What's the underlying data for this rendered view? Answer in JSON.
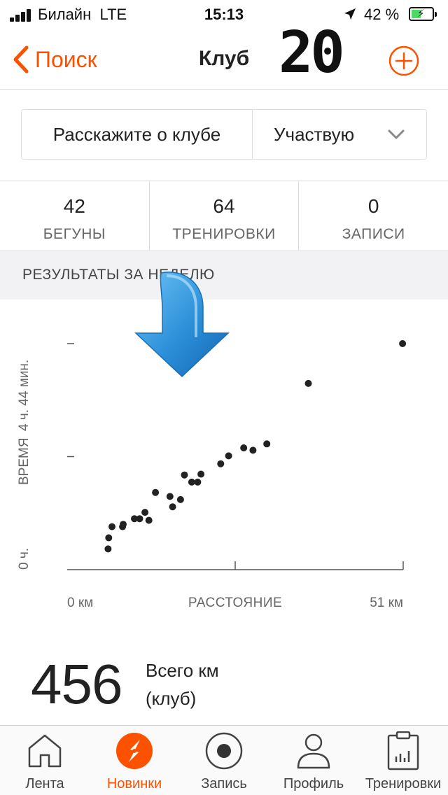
{
  "status_bar": {
    "carrier": "Билайн",
    "network": "LTE",
    "time": "15:13",
    "battery": "42 %",
    "battery_level": 0.42
  },
  "nav": {
    "back_label": "Поиск",
    "title": "Клуб",
    "overlay_number": "20",
    "accent_color": "#fc5200"
  },
  "actions": {
    "about_label": "Расскажите о клубе",
    "membership_label": "Участвую"
  },
  "stats": [
    {
      "value": "42",
      "label": "БЕГУНЫ"
    },
    {
      "value": "64",
      "label": "ТРЕНИРОВКИ"
    },
    {
      "value": "0",
      "label": "ЗАПИСИ"
    }
  ],
  "section": {
    "title": "РЕЗУЛЬТАТЫ ЗА НЕДЕЛЮ"
  },
  "chart_data": {
    "type": "scatter",
    "xlabel": "РАССТОЯНИЕ",
    "ylabel": "ВРЕМЯ",
    "x_min_label": "0 км",
    "x_max_label": "51 км",
    "y_min_label": "0 ч.",
    "y_max_label": "4 ч. 44 мин.",
    "xlim": [
      0,
      51
    ],
    "ylim_minutes": [
      0,
      284
    ],
    "point_color": "#222222",
    "points": [
      {
        "x": 6.2,
        "y": 26
      },
      {
        "x": 6.3,
        "y": 40
      },
      {
        "x": 6.8,
        "y": 54
      },
      {
        "x": 8.4,
        "y": 54
      },
      {
        "x": 8.5,
        "y": 57
      },
      {
        "x": 10.2,
        "y": 64
      },
      {
        "x": 11.0,
        "y": 64
      },
      {
        "x": 11.8,
        "y": 72
      },
      {
        "x": 12.4,
        "y": 62
      },
      {
        "x": 13.4,
        "y": 97
      },
      {
        "x": 15.6,
        "y": 92
      },
      {
        "x": 16.0,
        "y": 79
      },
      {
        "x": 17.2,
        "y": 88
      },
      {
        "x": 17.8,
        "y": 119
      },
      {
        "x": 18.9,
        "y": 110
      },
      {
        "x": 19.8,
        "y": 110
      },
      {
        "x": 20.3,
        "y": 120
      },
      {
        "x": 23.3,
        "y": 133
      },
      {
        "x": 24.5,
        "y": 143
      },
      {
        "x": 26.8,
        "y": 153
      },
      {
        "x": 28.2,
        "y": 150
      },
      {
        "x": 30.3,
        "y": 158
      },
      {
        "x": 36.6,
        "y": 234
      },
      {
        "x": 50.9,
        "y": 284
      }
    ]
  },
  "totals": {
    "value": "456",
    "label_line1": "Всего км",
    "label_line2": "(клуб)"
  },
  "tabbar": [
    {
      "label": "Лента",
      "icon": "home-icon",
      "active": false
    },
    {
      "label": "Новинки",
      "icon": "explore-icon",
      "active": true
    },
    {
      "label": "Запись",
      "icon": "record-icon",
      "active": false
    },
    {
      "label": "Профиль",
      "icon": "profile-icon",
      "active": false
    },
    {
      "label": "Тренировки",
      "icon": "training-log-icon",
      "active": false
    }
  ]
}
